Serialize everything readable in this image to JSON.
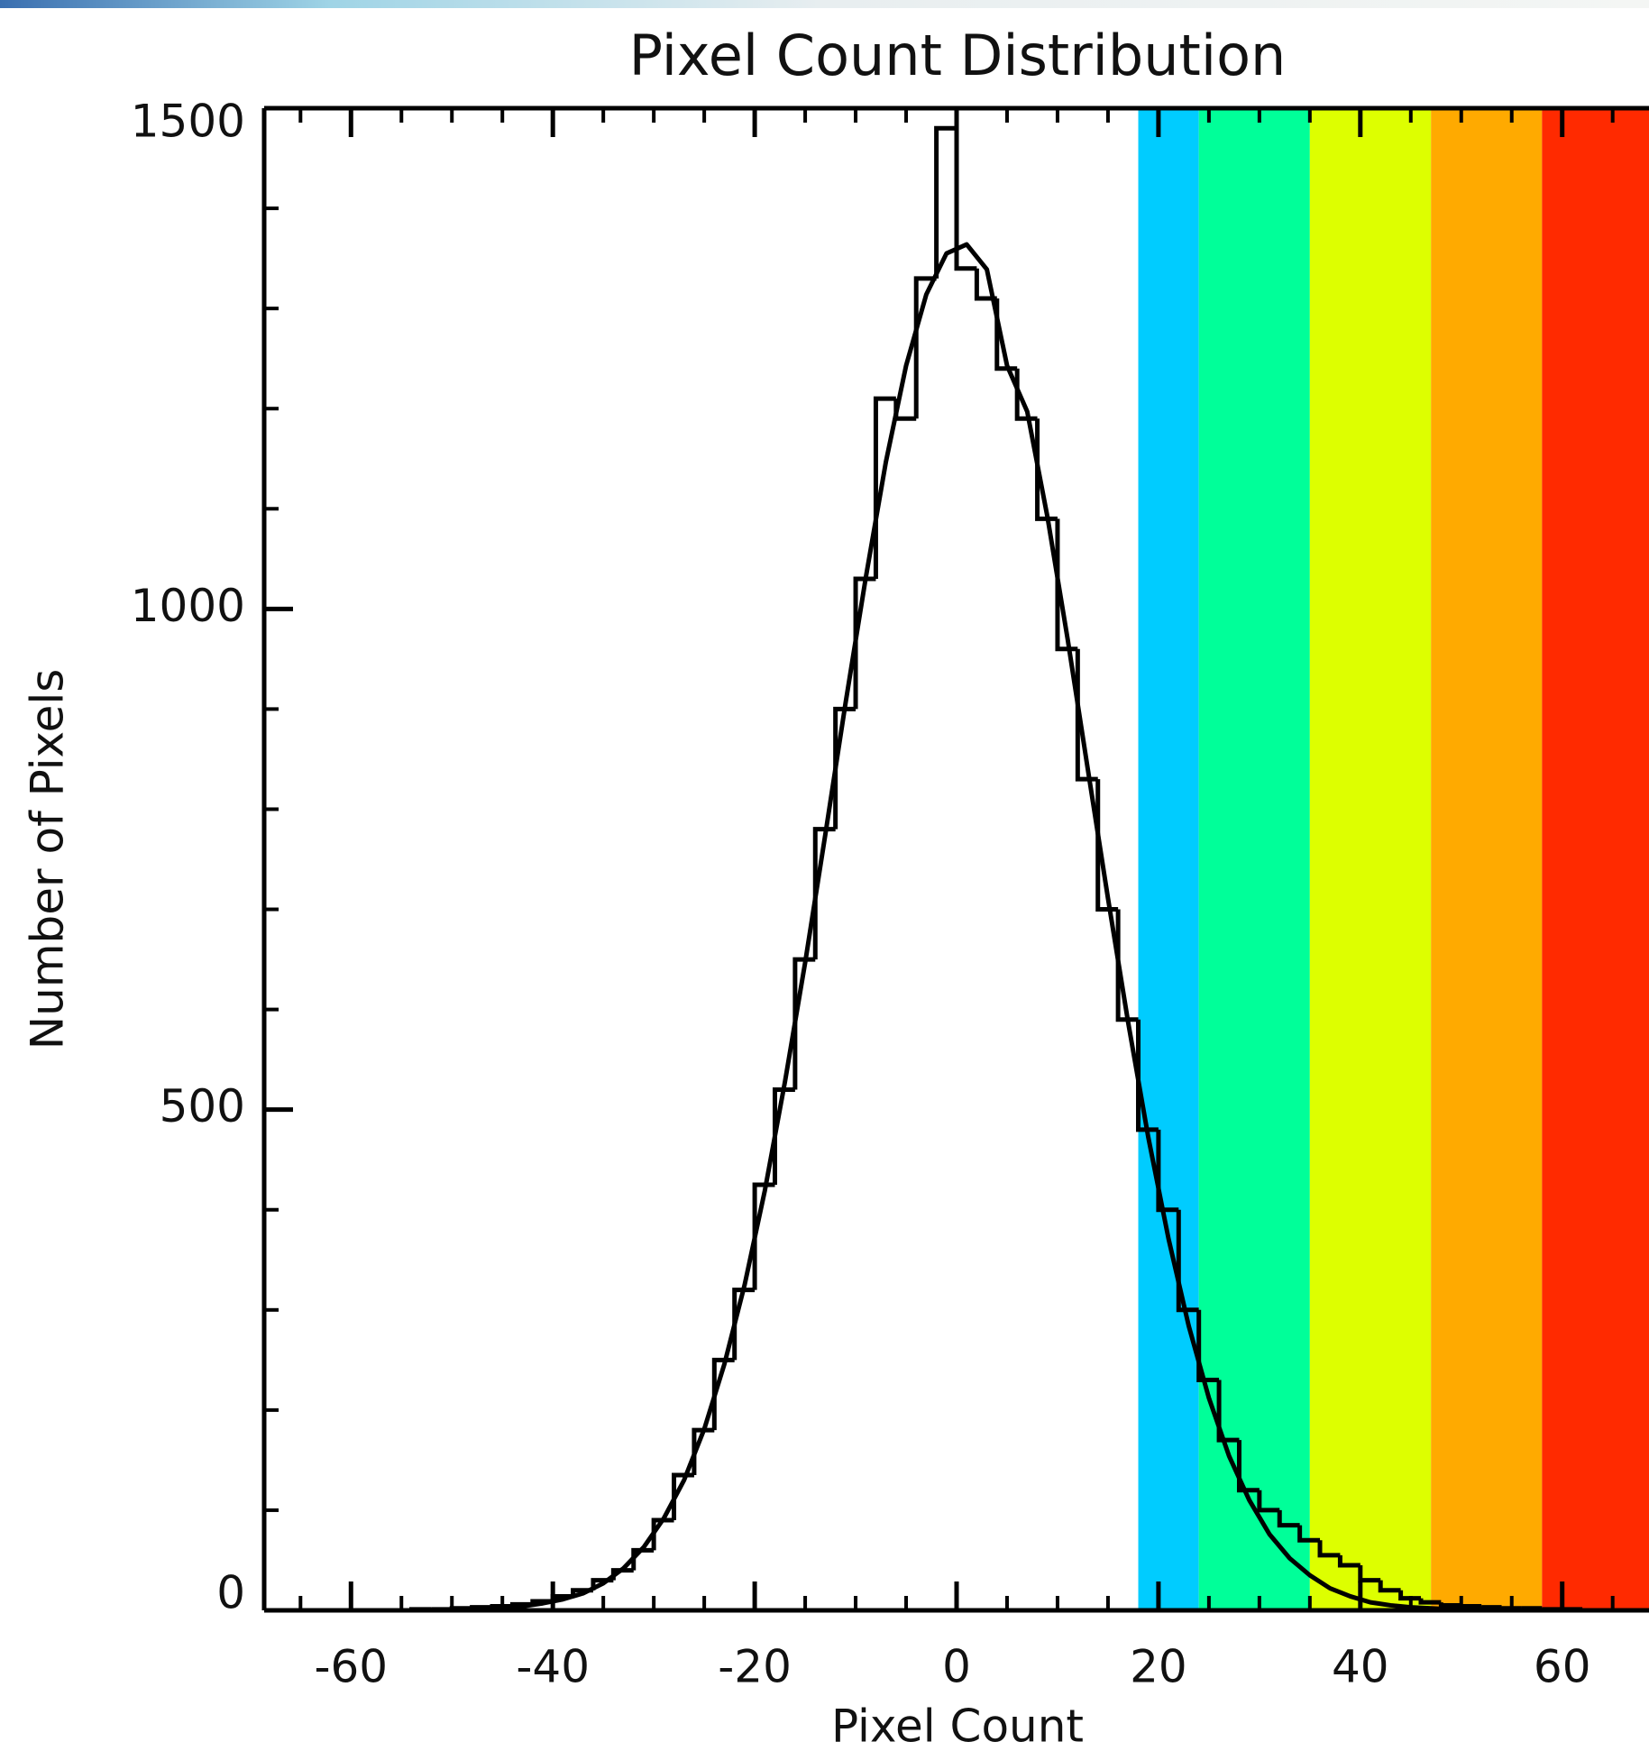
{
  "chart_data": {
    "type": "histogram",
    "title": "Pixel Count Distribution",
    "x_label": "Pixel Count",
    "y_label": "Number of Pixels",
    "xlim": [
      -68.6,
      68.6
    ],
    "ylim": [
      0,
      1500
    ],
    "xticks": [
      -60,
      -40,
      -20,
      0,
      20,
      40,
      60
    ],
    "yticks": [
      0,
      500,
      1000,
      1500
    ],
    "xminorticks": [
      -65,
      -55,
      -50,
      -45,
      -35,
      -30,
      -25,
      -15,
      -10,
      -5,
      5,
      10,
      15,
      25,
      30,
      35,
      45,
      50,
      55,
      65
    ],
    "yminorticks": [
      100,
      200,
      300,
      400,
      600,
      700,
      800,
      900,
      1100,
      1200,
      1300,
      1400
    ],
    "color": "#000000",
    "bands": [
      {
        "from": 18,
        "to": 24,
        "color": "#00ccff"
      },
      {
        "from": 24,
        "to": 35,
        "color": "#00ff99"
      },
      {
        "from": 35,
        "to": 47,
        "color": "#ddff00"
      },
      {
        "from": 47,
        "to": 58,
        "color": "#ffaa00"
      },
      {
        "from": 58,
        "to": 68.6,
        "color": "#ff2a00"
      }
    ],
    "bins": [
      -64,
      -62,
      -60,
      -58,
      -56,
      -54,
      -52,
      -50,
      -48,
      -46,
      -44,
      -42,
      -40,
      -38,
      -36,
      -34,
      -32,
      -30,
      -28,
      -26,
      -24,
      -22,
      -20,
      -18,
      -16,
      -14,
      -12,
      -10,
      -8,
      -6,
      -4,
      -2,
      0,
      2,
      4,
      6,
      8,
      10,
      12,
      14,
      16,
      18,
      20,
      22,
      24,
      26,
      28,
      30,
      32,
      34,
      36,
      38,
      40,
      42,
      44,
      46,
      48,
      50,
      52,
      54,
      56,
      58,
      60,
      62,
      64,
      66,
      68
    ],
    "values": [
      0,
      0,
      0,
      0,
      0,
      1,
      1,
      2,
      3,
      4,
      6,
      9,
      14,
      20,
      30,
      40,
      60,
      90,
      135,
      180,
      250,
      320,
      425,
      520,
      650,
      780,
      900,
      1030,
      1210,
      1190,
      1330,
      1480,
      1340,
      1310,
      1240,
      1190,
      1090,
      960,
      830,
      700,
      590,
      480,
      400,
      300,
      230,
      170,
      120,
      100,
      85,
      70,
      55,
      45,
      30,
      20,
      12,
      8,
      5,
      4,
      3,
      2,
      2,
      1,
      1,
      0,
      0,
      0
    ],
    "fit": {
      "x": [
        -63,
        -61,
        -59,
        -57,
        -55,
        -53,
        -51,
        -49,
        -47,
        -45,
        -43,
        -41,
        -39,
        -37,
        -35,
        -33,
        -31,
        -29,
        -27,
        -25,
        -23,
        -21,
        -19,
        -17,
        -15,
        -13,
        -11,
        -9,
        -7,
        -5,
        -3,
        -1,
        1,
        3,
        5,
        7,
        9,
        11,
        13,
        15,
        17,
        19,
        21,
        23,
        25,
        27,
        29,
        31,
        33,
        35,
        37,
        39,
        41,
        43,
        45,
        47,
        49,
        51,
        53,
        55,
        57,
        59,
        61,
        63,
        65,
        67
      ],
      "values": [
        0,
        0,
        0,
        0,
        0,
        0,
        0,
        1,
        1,
        2,
        4,
        7,
        11,
        17,
        27,
        42,
        63,
        92,
        130,
        181,
        246,
        325,
        419,
        528,
        647,
        775,
        906,
        1031,
        1147,
        1243,
        1314,
        1355,
        1364,
        1339,
        1243,
        1197,
        1092,
        970,
        840,
        711,
        587,
        472,
        371,
        284,
        212,
        154,
        110,
        76,
        52,
        35,
        22,
        14,
        8,
        5,
        3,
        2,
        1,
        0,
        0,
        0,
        0,
        0,
        0,
        0,
        0,
        0
      ],
      "color": "#000000"
    }
  }
}
